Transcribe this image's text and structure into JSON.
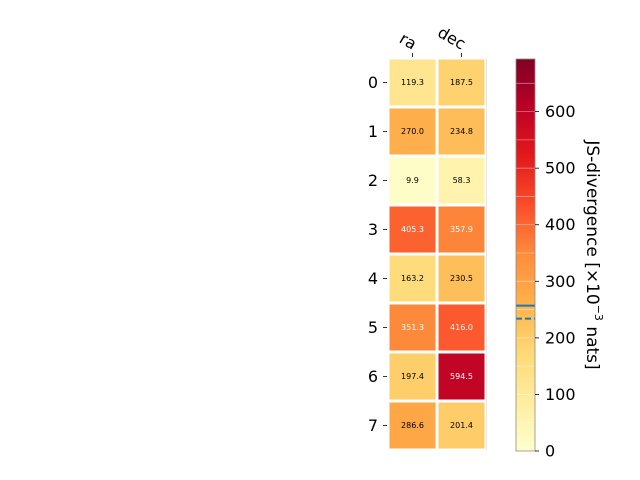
{
  "chart_data": {
    "type": "heatmap",
    "columns": [
      "ra",
      "dec"
    ],
    "rows": [
      "0",
      "1",
      "2",
      "3",
      "4",
      "5",
      "6",
      "7"
    ],
    "values": [
      [
        119.3,
        187.5
      ],
      [
        270.0,
        234.8
      ],
      [
        9.9,
        58.3
      ],
      [
        405.3,
        357.9
      ],
      [
        163.2,
        230.5
      ],
      [
        351.3,
        416.0
      ],
      [
        197.4,
        594.5
      ],
      [
        286.6,
        201.4
      ]
    ],
    "cell_labels": [
      [
        "119.3",
        "187.5"
      ],
      [
        "270.0",
        "234.8"
      ],
      [
        "9.9",
        "58.3"
      ],
      [
        "405.3",
        "357.9"
      ],
      [
        "163.2",
        "230.5"
      ],
      [
        "351.3",
        "416.0"
      ],
      [
        "197.4",
        "594.5"
      ],
      [
        "286.6",
        "201.4"
      ]
    ],
    "colormap": "YlOrRd",
    "colorbar": {
      "label_main": "JS-divergence [×10",
      "label_exp": "−3",
      "label_unit": " nats]",
      "range": [
        0,
        693
      ],
      "ticks": [
        "0",
        "100",
        "200",
        "300",
        "400",
        "500",
        "600"
      ],
      "markers": [
        {
          "value": 257,
          "style": "solid",
          "color": "#1f77b4"
        },
        {
          "value": 234,
          "style": "dashed",
          "color": "#1f77b4"
        }
      ]
    },
    "text_color_light": "#ffffff",
    "text_color_dark": "#000000"
  }
}
